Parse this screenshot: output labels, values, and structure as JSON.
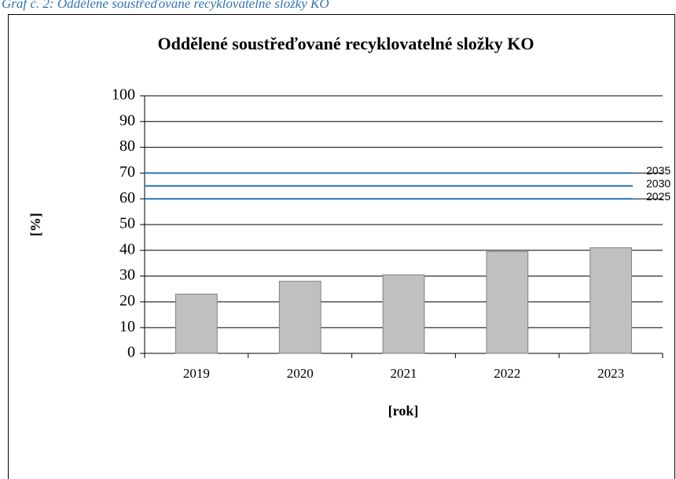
{
  "chart_data": {
    "type": "bar",
    "caption": "Graf č. 2: Oddělené soustřeďované recyklovatelné složky KO",
    "title": "Oddělené soustřeďované recyklovatelné složky KO",
    "x_label": "[rok]",
    "y_label": "[%]",
    "categories": [
      "2019",
      "2020",
      "2021",
      "2022",
      "2023"
    ],
    "values": [
      23,
      28,
      30.5,
      39.5,
      41
    ],
    "color": "#c0c0c0",
    "ylim": [
      0,
      100
    ],
    "yticks": [
      0,
      10,
      20,
      30,
      40,
      50,
      60,
      70,
      80,
      90,
      100
    ],
    "grid": true,
    "targets": [
      {
        "value": 70,
        "label": "2035"
      },
      {
        "value": 65,
        "label": "2030"
      },
      {
        "value": 60,
        "label": "2025"
      }
    ],
    "target_color": "#2474b5"
  }
}
